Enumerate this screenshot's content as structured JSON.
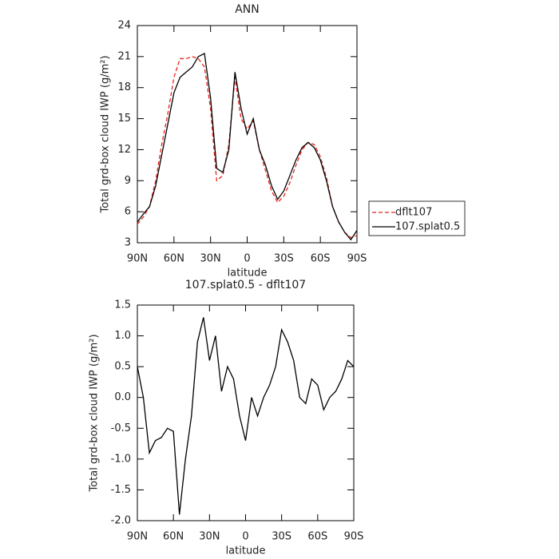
{
  "chart_data": [
    {
      "type": "line",
      "title": "ANN",
      "xlabel": "latitude",
      "ylabel": "Total grd-box cloud IWP (g/m²)",
      "x": [
        90,
        85,
        80,
        75,
        70,
        65,
        60,
        55,
        50,
        45,
        40,
        35,
        30,
        25,
        20,
        15,
        10,
        5,
        0,
        -5,
        -10,
        -15,
        -20,
        -25,
        -30,
        -35,
        -40,
        -45,
        -50,
        -55,
        -60,
        -65,
        -70,
        -75,
        -80,
        -85,
        -90
      ],
      "xlim": [
        90,
        -90
      ],
      "xticks": [
        {
          "value": 90,
          "label": "90N"
        },
        {
          "value": 60,
          "label": "60N"
        },
        {
          "value": 30,
          "label": "30N"
        },
        0,
        {
          "value": -30,
          "label": "30S"
        },
        {
          "value": -60,
          "label": "60S"
        },
        {
          "value": -90,
          "label": "90S"
        }
      ],
      "ylim": [
        3,
        24
      ],
      "yticks": [
        3,
        6,
        9,
        12,
        15,
        18,
        21,
        24
      ],
      "legend": "right",
      "series": [
        {
          "name": "dflt107",
          "color": "#e8231b",
          "linestyle": "dashed",
          "values": [
            4.8,
            5.5,
            6.5,
            9.0,
            12.5,
            15.5,
            19.0,
            20.8,
            20.8,
            21.0,
            20.8,
            20.0,
            16.0,
            9.0,
            9.5,
            12.5,
            19.0,
            15.0,
            14.0,
            14.8,
            12.0,
            10.0,
            8.0,
            6.9,
            7.5,
            8.8,
            10.5,
            12.0,
            12.7,
            12.5,
            11.3,
            9.3,
            6.5,
            5.0,
            4.0,
            3.5,
            3.7
          ]
        },
        {
          "name": "107.splat0.5",
          "color": "#000000",
          "linestyle": "solid",
          "values": [
            5.0,
            5.8,
            6.5,
            8.5,
            11.5,
            14.5,
            17.5,
            19.0,
            19.5,
            20.0,
            21.0,
            21.3,
            17.0,
            10.2,
            9.8,
            12.0,
            19.5,
            16.0,
            13.5,
            15.0,
            12.0,
            10.5,
            8.5,
            7.2,
            8.0,
            9.5,
            11.0,
            12.2,
            12.7,
            12.2,
            11.0,
            9.0,
            6.5,
            5.0,
            4.0,
            3.3,
            4.2
          ]
        }
      ]
    },
    {
      "type": "line",
      "title": "107.splat0.5 - dflt107",
      "xlabel": "latitude",
      "ylabel": "Total grd-box cloud IWP (g/m²)",
      "x": [
        90,
        85,
        80,
        75,
        70,
        65,
        60,
        55,
        50,
        45,
        40,
        35,
        30,
        25,
        20,
        15,
        10,
        5,
        0,
        -5,
        -10,
        -15,
        -20,
        -25,
        -30,
        -35,
        -40,
        -45,
        -50,
        -55,
        -60,
        -65,
        -70,
        -75,
        -80,
        -85,
        -90
      ],
      "xlim": [
        90,
        -90
      ],
      "xticks": [
        {
          "value": 90,
          "label": "90N"
        },
        {
          "value": 60,
          "label": "60N"
        },
        {
          "value": 30,
          "label": "30N"
        },
        0,
        {
          "value": -30,
          "label": "30S"
        },
        {
          "value": -60,
          "label": "60S"
        },
        {
          "value": -90,
          "label": "90S"
        }
      ],
      "ylim": [
        -2.0,
        1.5
      ],
      "yticks": [
        {
          "value": -2,
          "label": "-2.0"
        },
        -1.5,
        {
          "value": -1,
          "label": "-1.0"
        },
        -0.5,
        {
          "value": 0,
          "label": "0.0"
        },
        0.5,
        {
          "value": 1,
          "label": "1.0"
        },
        1.5
      ],
      "series": [
        {
          "name": "107.splat0.5 - dflt107",
          "color": "#000000",
          "linestyle": "solid",
          "values": [
            0.5,
            0.0,
            -0.9,
            -0.7,
            -0.65,
            -0.5,
            -0.55,
            -1.9,
            -1.0,
            -0.3,
            0.9,
            1.3,
            0.6,
            1.0,
            0.1,
            0.5,
            0.3,
            -0.3,
            -0.7,
            0.0,
            -0.3,
            0.0,
            0.2,
            0.5,
            1.1,
            0.9,
            0.6,
            0.0,
            -0.1,
            0.3,
            0.2,
            -0.2,
            0.0,
            0.1,
            0.3,
            0.6,
            0.5
          ]
        }
      ]
    }
  ]
}
